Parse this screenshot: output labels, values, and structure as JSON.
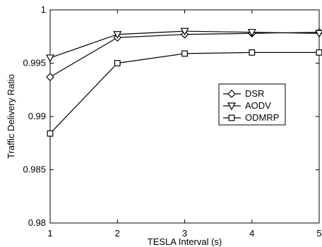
{
  "chart_data": {
    "type": "line",
    "title": "",
    "xlabel": "TESLA Interval (s)",
    "ylabel": "Traffic Delivery Ratio",
    "x": [
      1,
      2,
      3,
      4,
      5
    ],
    "xlim": [
      1,
      5
    ],
    "ylim": [
      0.98,
      1
    ],
    "xticks": [
      1,
      2,
      3,
      4,
      5
    ],
    "yticks": [
      0.98,
      0.985,
      0.99,
      0.995,
      1
    ],
    "xtick_labels": [
      "1",
      "2",
      "3",
      "4",
      "5"
    ],
    "ytick_labels": [
      "0.98",
      "0.985",
      "0.99",
      "0.995",
      "1"
    ],
    "grid": true,
    "legend_position": "right-middle",
    "series": [
      {
        "name": "DSR",
        "marker": "diamond",
        "values": [
          0.9937,
          0.9974,
          0.9977,
          0.9978,
          0.9979
        ],
        "color": "#000000"
      },
      {
        "name": "AODV",
        "marker": "triangle-down",
        "values": [
          0.9955,
          0.9977,
          0.998,
          0.9979,
          0.9978
        ],
        "color": "#000000"
      },
      {
        "name": "ODMRP",
        "marker": "square",
        "values": [
          0.9884,
          0.995,
          0.9959,
          0.996,
          0.996
        ],
        "color": "#000000"
      }
    ]
  }
}
